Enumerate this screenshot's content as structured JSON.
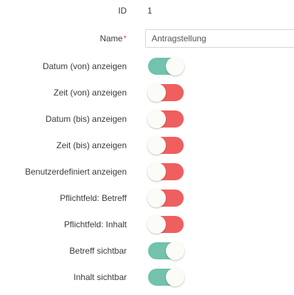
{
  "id_field": {
    "label": "ID",
    "value": "1"
  },
  "name_field": {
    "label": "Name",
    "required_marker": "*",
    "value": "Antragstellung"
  },
  "colors": {
    "toggle_on": "#72c2ad",
    "toggle_off": "#ef5f5f",
    "required": "#e05a5a"
  },
  "toggles": [
    {
      "label": "Datum (von) anzeigen",
      "checked": true
    },
    {
      "label": "Zeit (von) anzeigen",
      "checked": false
    },
    {
      "label": "Datum (bis) anzeigen",
      "checked": false
    },
    {
      "label": "Zeit (bis) anzeigen",
      "checked": false
    },
    {
      "label": "Benutzerdefiniert anzeigen",
      "checked": false
    },
    {
      "label": "Pflichtfeld: Betreff",
      "checked": false
    },
    {
      "label": "Pflichtfeld: Inhalt",
      "checked": false
    },
    {
      "label": "Betreff sichtbar",
      "checked": true
    },
    {
      "label": "Inhalt sichtbar",
      "checked": true
    }
  ]
}
